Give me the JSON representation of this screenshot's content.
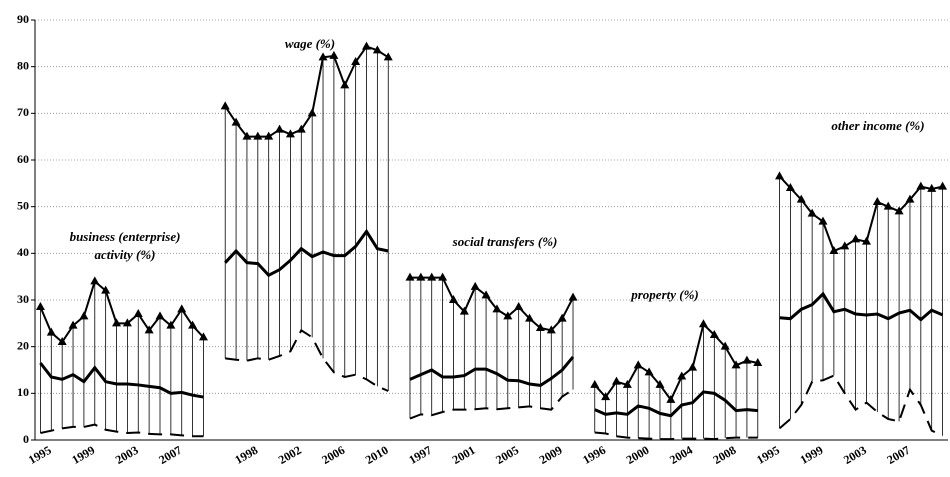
{
  "chart_data": {
    "type": "hilo",
    "categories": [
      "1995",
      null,
      null,
      null,
      "1999",
      null,
      null,
      null,
      "2003",
      null,
      null,
      null,
      "2007",
      null,
      null,
      null,
      null,
      null,
      null,
      "1998",
      null,
      null,
      null,
      "2002",
      null,
      null,
      null,
      "2006",
      null,
      null,
      null,
      "2010",
      null,
      null,
      null,
      "1997",
      null,
      null,
      null,
      "2001",
      null,
      null,
      null,
      "2005",
      null,
      null,
      null,
      "2009",
      null,
      null,
      null,
      "1996",
      null,
      null,
      null,
      "2000",
      null,
      null,
      null,
      "2004",
      null,
      null,
      null,
      "2008",
      null,
      null,
      null,
      "1995",
      null,
      null,
      null,
      "1999",
      null,
      null,
      null,
      "2003",
      null,
      null,
      null,
      "2007",
      null,
      null,
      null,
      null
    ],
    "series": [
      {
        "style": "triangle",
        "color": "#000000",
        "values": [
          28.5,
          23,
          21,
          24.5,
          26.5,
          34,
          32,
          25,
          25,
          27,
          23.5,
          26.5,
          24.5,
          28,
          24.5,
          22,
          null,
          71.5,
          68,
          65,
          65,
          65,
          66.5,
          65.5,
          66.5,
          70,
          82,
          82.3,
          76,
          81,
          84.3,
          83.5,
          82,
          null,
          34.8,
          34.8,
          34.8,
          34.8,
          30,
          27.5,
          32.8,
          31,
          28,
          26.5,
          28.5,
          26,
          24,
          23.5,
          26,
          30.5,
          null,
          11.8,
          9.2,
          12.5,
          11.8,
          16,
          14.5,
          11.8,
          8.6,
          13.6,
          15.5,
          24.8,
          22.5,
          20,
          16,
          17,
          16.5,
          null,
          56.5,
          54,
          51.5,
          48.5,
          46.8,
          40.5,
          41.5,
          43,
          42.5,
          51,
          50,
          49,
          51.5,
          54.3,
          53.8,
          54.3
        ]
      },
      {
        "style": "thick",
        "color": "#000000",
        "values": [
          16.5,
          13.5,
          13,
          14,
          12.5,
          15.5,
          12.5,
          12,
          12,
          11.8,
          11.5,
          11.2,
          10,
          10.2,
          9.6,
          9.2,
          null,
          38,
          40.5,
          38,
          37.8,
          35.3,
          36.5,
          38.5,
          41,
          39.3,
          40.3,
          39.5,
          39.5,
          41.5,
          44.7,
          41,
          40.5,
          null,
          13,
          14,
          15,
          13.5,
          13.5,
          13.8,
          15.2,
          15.2,
          14.2,
          12.8,
          12.7,
          12,
          11.7,
          13.2,
          15,
          17.8,
          null,
          6.5,
          5.5,
          5.8,
          5.5,
          7.3,
          6.8,
          5.7,
          5.2,
          7.5,
          8,
          10.3,
          10,
          8.5,
          6.3,
          6.5,
          6.3,
          null,
          26.2,
          26,
          28,
          29,
          31.3,
          27.5,
          28,
          27,
          26.8,
          27,
          26,
          27.2,
          27.8,
          25.8,
          27.8,
          26.8
        ]
      },
      {
        "style": "dashed",
        "color": "#000000",
        "values": [
          1.5,
          2,
          2.5,
          2.8,
          2.8,
          3.3,
          2.2,
          1.8,
          1.5,
          1.6,
          1.3,
          1.2,
          1.2,
          1,
          0.8,
          0.8,
          null,
          17.5,
          17.2,
          17,
          17.5,
          17.2,
          18,
          19,
          23.5,
          22,
          17.5,
          14.5,
          13.5,
          14,
          13,
          11.5,
          10.5,
          null,
          4.6,
          5.5,
          5.3,
          6,
          6.5,
          6.5,
          6.6,
          6.8,
          6.6,
          6.8,
          7,
          7.2,
          6.8,
          6.5,
          9.3,
          10.8,
          null,
          1.6,
          1.4,
          0.8,
          0.5,
          0.4,
          0.3,
          0.2,
          0.2,
          0.3,
          0.3,
          0.3,
          0.2,
          0.4,
          0.5,
          0.5,
          0.5,
          null,
          2.5,
          4.5,
          7.5,
          12.5,
          12.8,
          13.8,
          10,
          6.5,
          8,
          6,
          4.5,
          4,
          10.8,
          7.5,
          2,
          1
        ]
      }
    ],
    "annotations": [
      "business (enterprise)",
      "activity (%)",
      "wage (%)",
      "social transfers (%)",
      "property (%)",
      "other income (%)"
    ],
    "ylim": [
      0,
      90
    ],
    "yticks": [
      0,
      10,
      20,
      30,
      40,
      50,
      60,
      70,
      80,
      90
    ],
    "grid": true
  }
}
